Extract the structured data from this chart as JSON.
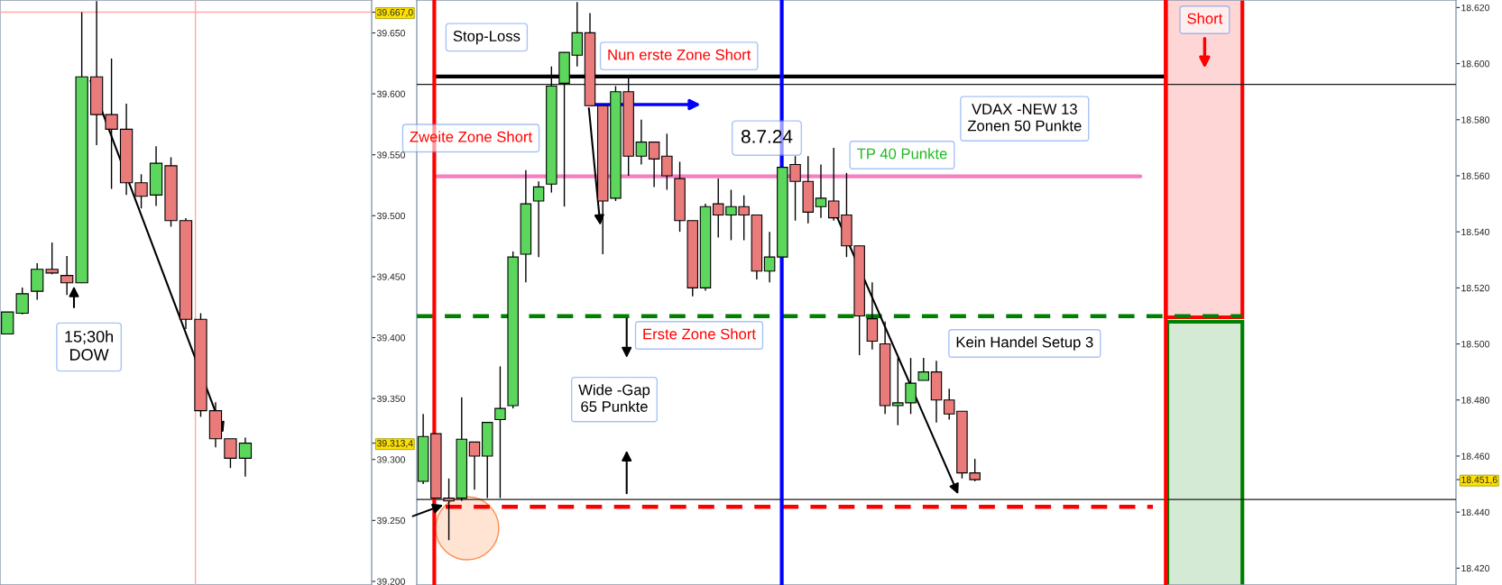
{
  "chart_data": [
    {
      "type": "candlestick",
      "tick_labels": "y",
      "grid": false,
      "legend": false,
      "categories": [
        null,
        null,
        null,
        null,
        null,
        null,
        null,
        null,
        null,
        null,
        null,
        null,
        null,
        null,
        null,
        null,
        null,
        null,
        null,
        null,
        null,
        null,
        null,
        null,
        null
      ],
      "ohlc": [
        [
          39403,
          39421,
          39403,
          39421
        ],
        [
          39420,
          39441,
          39419,
          39436
        ],
        [
          39438,
          39461,
          39431,
          39456
        ],
        [
          39456,
          39478,
          39452,
          39453
        ],
        [
          39451,
          39467,
          39435,
          39445
        ],
        [
          39445,
          39667,
          39445,
          39614
        ],
        [
          39614,
          39676,
          39558,
          39583
        ],
        [
          39583,
          39629,
          39522,
          39571
        ],
        [
          39571,
          39592,
          39517,
          39527
        ],
        [
          39527,
          39534,
          39506,
          39516
        ],
        [
          39517,
          39557,
          39508,
          39543
        ],
        [
          39541,
          39548,
          39491,
          39496
        ],
        [
          39496,
          39498,
          39407,
          39415
        ],
        [
          39415,
          39420,
          39335,
          39340
        ],
        [
          39340,
          39347,
          39310,
          39317
        ],
        [
          39317,
          39317,
          39293,
          39301
        ],
        [
          39301,
          39318,
          39286,
          39313.4
        ],
        null,
        null,
        null,
        null,
        null,
        null,
        null,
        null
      ],
      "colors": [
        "#5cd65c",
        "#5cd65c",
        "#5cd65c",
        "#e97b7b",
        "#e97b7b",
        "#5cd65c",
        "#e97b7b",
        "#e97b7b",
        "#e97b7b",
        "#e97b7b",
        "#5cd65c",
        "#e97b7b",
        "#e97b7b",
        "#e97b7b",
        "#e97b7b",
        "#e97b7b",
        "#5cd65c",
        null,
        null,
        null,
        null,
        null,
        null,
        null,
        null
      ],
      "ylim": [
        39197,
        39677
      ],
      "yticks": [
        {
          "value": 39200,
          "label": "39.200"
        },
        {
          "value": 39250,
          "label": "39.250"
        },
        {
          "value": 39300,
          "label": "39.300"
        },
        {
          "value": 39350,
          "label": "39.350"
        },
        {
          "value": 39400,
          "label": "39.400"
        },
        {
          "value": 39450,
          "label": "39.450"
        },
        {
          "value": 39500,
          "label": "39.500"
        },
        {
          "value": 39550,
          "label": "39.550"
        },
        {
          "value": 39600,
          "label": "39.600"
        },
        {
          "value": 39650,
          "label": "39.650"
        },
        {
          "value": 39667,
          "label": "39.667,0"
        },
        {
          "value": 39313.4,
          "label": "39.313,4"
        }
      ],
      "ref_lines": [
        {
          "axis": "y",
          "value": 39667,
          "color": "#ffa8a8"
        }
      ],
      "annotations": [
        "15;30h\nDOW"
      ]
    },
    {
      "type": "candlestick",
      "tick_labels": "y",
      "grid": false,
      "legend": false,
      "categories": [
        null,
        null,
        null,
        null,
        null,
        null,
        null,
        null,
        null,
        null,
        null,
        null,
        null,
        null,
        null,
        null,
        null,
        null,
        null,
        null,
        null,
        null,
        null,
        null,
        null,
        null,
        null,
        null,
        null,
        null,
        null,
        null,
        null,
        null,
        null,
        null,
        null,
        null,
        null,
        null,
        null,
        null,
        null,
        null,
        null,
        null,
        null,
        null,
        null,
        null,
        null,
        null,
        null,
        null,
        null,
        null,
        null,
        null,
        null,
        null,
        null,
        null,
        null,
        null,
        null,
        null,
        null,
        null,
        null,
        null,
        null,
        null,
        null,
        null,
        null,
        null,
        null,
        null,
        null,
        null,
        null
      ],
      "ohlc": [
        [
          18451,
          18475,
          18450,
          18467
        ],
        [
          18468,
          18468,
          18445,
          18445
        ],
        [
          18445,
          18452,
          18430,
          18444
        ],
        [
          18445,
          18481,
          18444,
          18466
        ],
        [
          18465,
          18465,
          18448,
          18460
        ],
        [
          18460,
          18472,
          18445,
          18472
        ],
        [
          18473,
          18492,
          18445,
          18477
        ],
        [
          18478,
          18533,
          18477,
          18531
        ],
        [
          18532,
          18562,
          18522,
          18550
        ],
        [
          18551,
          18558,
          18531,
          18556
        ],
        [
          18557,
          18599,
          18554,
          18592
        ],
        [
          18593,
          18604,
          18549,
          18604
        ],
        [
          18603,
          18622,
          18599,
          18611
        ],
        [
          18611,
          18618,
          18585,
          18585
        ],
        [
          18585,
          18585,
          18532,
          18551
        ],
        [
          18552,
          18592,
          18551,
          18590
        ],
        [
          18590,
          18595,
          18560,
          18567
        ],
        [
          18567,
          18580,
          18564,
          18572
        ],
        [
          18572,
          18572,
          18556,
          18566
        ],
        [
          18567,
          18575,
          18555,
          18560
        ],
        [
          18559,
          18565,
          18540,
          18544
        ],
        [
          18544,
          18544,
          18517,
          18520
        ],
        [
          18520,
          18550,
          18519,
          18549
        ],
        [
          18550,
          18559,
          18538,
          18546
        ],
        [
          18546,
          18555,
          18537,
          18549
        ],
        [
          18549,
          18553,
          18537,
          18546
        ],
        [
          18546,
          18546,
          18523,
          18526
        ],
        [
          18526,
          18540,
          18522,
          18531
        ],
        [
          18531,
          18563,
          18531,
          18563
        ],
        [
          18564,
          18567,
          18544,
          18558
        ],
        [
          18558,
          18567,
          18543,
          18547
        ],
        [
          18549,
          18564,
          18545,
          18552
        ],
        [
          18551,
          18570,
          18544,
          18545
        ],
        [
          18546,
          18561,
          18531,
          18535
        ],
        [
          18535,
          18535,
          18496,
          18510
        ],
        [
          18509,
          18522,
          18498,
          18501
        ],
        [
          18500,
          18508,
          18475,
          18478
        ],
        [
          18478,
          18495,
          18471,
          18479
        ],
        [
          18479,
          18495,
          18475,
          18486
        ],
        [
          18487,
          18495,
          18487,
          18490
        ],
        [
          18490,
          18494,
          18472,
          18480
        ],
        [
          18480,
          18484,
          18473,
          18475
        ],
        [
          18476,
          18476,
          18452,
          18454
        ],
        [
          18454,
          18459,
          18451,
          18451.6
        ],
        null,
        null,
        null,
        null,
        null,
        null,
        null,
        null,
        null,
        null,
        null,
        null,
        null,
        null,
        null,
        null,
        null,
        null,
        null,
        null,
        null,
        null,
        null,
        null,
        null,
        null,
        null,
        null,
        null,
        null,
        null,
        null,
        null,
        null,
        null,
        null,
        null
      ],
      "colors": [
        "#5cd65c",
        "#e97b7b",
        "#e97b7b",
        "#5cd65c",
        "#e97b7b",
        "#5cd65c",
        "#5cd65c",
        "#5cd65c",
        "#5cd65c",
        "#5cd65c",
        "#5cd65c",
        "#5cd65c",
        "#5cd65c",
        "#e97b7b",
        "#e97b7b",
        "#5cd65c",
        "#e97b7b",
        "#5cd65c",
        "#e97b7b",
        "#e97b7b",
        "#e97b7b",
        "#e97b7b",
        "#5cd65c",
        "#e97b7b",
        "#5cd65c",
        "#e97b7b",
        "#e97b7b",
        "#5cd65c",
        "#5cd65c",
        "#e97b7b",
        "#e97b7b",
        "#5cd65c",
        "#e97b7b",
        "#e97b7b",
        "#e97b7b",
        "#e97b7b",
        "#e97b7b",
        "#5cd65c",
        "#5cd65c",
        "#5cd65c",
        "#e97b7b",
        "#e97b7b",
        "#e97b7b",
        "#e97b7b",
        null,
        null,
        null,
        null,
        null,
        null,
        null,
        null,
        null,
        null,
        null,
        null,
        null,
        null,
        null,
        null,
        null,
        null,
        null,
        null,
        null,
        null,
        null,
        null,
        null,
        null,
        null,
        null,
        null,
        null,
        null,
        null,
        null,
        null,
        null,
        null,
        null
      ],
      "ylim": [
        18414,
        18622.7
      ],
      "yticks": [
        {
          "value": 18420,
          "label": "18.420"
        },
        {
          "value": 18440,
          "label": "18.440"
        },
        {
          "value": 18460,
          "label": "18.460"
        },
        {
          "value": 18480,
          "label": "18.480"
        },
        {
          "value": 18500,
          "label": "18.500"
        },
        {
          "value": 18520,
          "label": "18.520"
        },
        {
          "value": 18540,
          "label": "18.540"
        },
        {
          "value": 18560,
          "label": "18.560"
        },
        {
          "value": 18580,
          "label": "18.580"
        },
        {
          "value": 18600,
          "label": "18.600"
        },
        {
          "value": 18620,
          "label": "18.620"
        },
        {
          "value": 18451.6,
          "label": "18.451,6"
        }
      ],
      "ref_lines": [
        {
          "axis": "y",
          "value": 18595.4,
          "color": "#000000"
        },
        {
          "axis": "y",
          "value": 18592.6,
          "color": "#1a1a1a"
        },
        {
          "axis": "y",
          "value": 18559.8,
          "color": "#f57fbf"
        },
        {
          "axis": "y",
          "value": 18509.9,
          "color": "#008000",
          "line_style": "dashed"
        },
        {
          "axis": "y",
          "value": 18444.5,
          "color": "#1a1a1a"
        },
        {
          "axis": "y",
          "value": 18441.9,
          "color": "#ff0000",
          "line_style": "dashed"
        }
      ],
      "annotations": [
        "Stop-Loss",
        "Nun erste Zone Short",
        "Zweite Zone Short",
        "8.7.24",
        "TP 40 Punkte",
        "Erste Zone Short",
        "Wide -Gap\n65 Punkte",
        "VDAX -NEW 13\nZonen 50 Punkte",
        "Kein Handel Setup 3",
        "Short"
      ]
    }
  ]
}
